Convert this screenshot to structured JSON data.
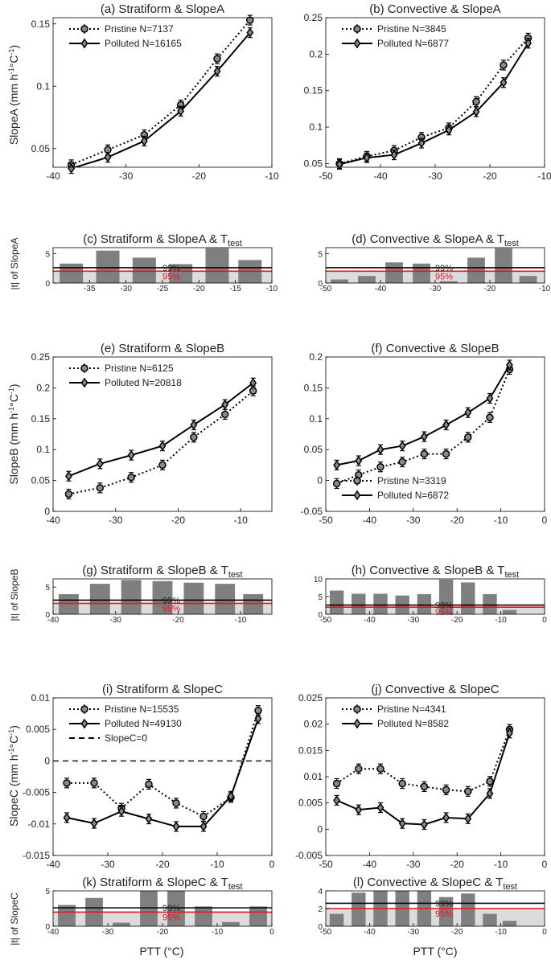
{
  "figure": {
    "ylabels": {
      "slopeA": "SlopeA (mm h",
      "slopeB": "SlopeB (mm h",
      "slopeC": "SlopeC (mm h",
      "unit_sup1": "-1",
      "unit_mid": "°C",
      "unit_sup2": "-1",
      "unit_close": ")",
      "ttest_A": "|t| of SlopeA",
      "ttest_B": "|t| of SlopeB",
      "ttest_C": "|t| of SlopeC"
    },
    "xlabel": "PTT (°C)",
    "ttest_title_suffix": "test",
    "ttest_title_sub": "T",
    "level_labels": {
      "l99": "99%",
      "l95": "95%"
    }
  },
  "chart_data": [
    {
      "id": "a",
      "type": "line",
      "title": "(a) Stratiform & SlopeA",
      "xlim": [
        -40,
        -10
      ],
      "ylim": [
        0.035,
        0.155
      ],
      "xticks": [
        -40,
        -30,
        -20,
        -10
      ],
      "yticks": [
        0.05,
        0.1,
        0.15
      ],
      "ytick_labels": [
        "0.05",
        "0.1",
        "0.15"
      ],
      "legend_position": "top-left",
      "series": [
        {
          "name": "Pristine",
          "label": "Pristine N=7137",
          "style": "dotted",
          "marker": "circle",
          "x": [
            -37.5,
            -32.5,
            -27.5,
            -22.5,
            -17.5,
            -13
          ],
          "y": [
            0.037,
            0.049,
            0.061,
            0.085,
            0.122,
            0.153
          ]
        },
        {
          "name": "Polluted",
          "label": "Polluted N=16165",
          "style": "solid",
          "marker": "diamond",
          "x": [
            -37.5,
            -32.5,
            -27.5,
            -22.5,
            -17.5,
            -13
          ],
          "y": [
            0.034,
            0.043,
            0.056,
            0.08,
            0.112,
            0.143
          ]
        }
      ]
    },
    {
      "id": "b",
      "type": "line",
      "title": "(b) Convective & SlopeA",
      "xlim": [
        -50,
        -10
      ],
      "ylim": [
        0.045,
        0.25
      ],
      "xticks": [
        -50,
        -40,
        -30,
        -20,
        -10
      ],
      "yticks": [
        0.05,
        0.1,
        0.15,
        0.2,
        0.25
      ],
      "ytick_labels": [
        "0.05",
        "0.1",
        "0.15",
        "0.2",
        "0.25"
      ],
      "legend_position": "top-left",
      "series": [
        {
          "name": "Pristine",
          "label": "Pristine  N=3845",
          "style": "dotted",
          "marker": "circle",
          "x": [
            -47.5,
            -42.5,
            -37.5,
            -32.5,
            -27.5,
            -22.5,
            -17.5,
            -13
          ],
          "y": [
            0.05,
            0.06,
            0.068,
            0.086,
            0.099,
            0.135,
            0.185,
            0.222
          ]
        },
        {
          "name": "Polluted",
          "label": "Polluted N=6877",
          "style": "solid",
          "marker": "diamond",
          "x": [
            -47.5,
            -42.5,
            -37.5,
            -32.5,
            -27.5,
            -22.5,
            -17.5,
            -13
          ],
          "y": [
            0.049,
            0.058,
            0.062,
            0.078,
            0.096,
            0.121,
            0.161,
            0.215
          ]
        }
      ]
    },
    {
      "id": "c",
      "type": "bar",
      "title": "(c) Stratiform & SlopeA & T",
      "xlim": [
        -40,
        -10
      ],
      "ylim": [
        0,
        6
      ],
      "xticks": [
        -35,
        -30,
        -25,
        -20,
        -15,
        -10
      ],
      "yticks": [
        0,
        5
      ],
      "x": [
        -37.5,
        -32.5,
        -27.5,
        -22.5,
        -17.5,
        -13
      ],
      "values": [
        3.3,
        5.5,
        4.3,
        3.2,
        5.9,
        3.9
      ],
      "bar_width": 3.2,
      "level_99": 2.6,
      "level_95": 2.0
    },
    {
      "id": "d",
      "type": "bar",
      "title": "(d) Convective & SlopeA & T",
      "xlim": [
        -50,
        -10
      ],
      "ylim": [
        0,
        6
      ],
      "xticks": [
        -50,
        -40,
        -30,
        -20,
        -10
      ],
      "yticks": [
        0,
        5
      ],
      "x": [
        -47.5,
        -42.5,
        -37.5,
        -32.5,
        -27.5,
        -22.5,
        -17.5,
        -13
      ],
      "values": [
        0.6,
        1.2,
        3.5,
        3.3,
        0.3,
        4.3,
        5.9,
        1.2
      ],
      "bar_width": 3.2,
      "level_99": 2.6,
      "level_95": 2.0
    },
    {
      "id": "e",
      "type": "line",
      "title": "(e) Stratiform & SlopeB",
      "xlim": [
        -40,
        -5
      ],
      "ylim": [
        0,
        0.25
      ],
      "xticks": [
        -40,
        -30,
        -20,
        -10
      ],
      "yticks": [
        0,
        0.05,
        0.1,
        0.15,
        0.2,
        0.25
      ],
      "ytick_labels": [
        "0",
        "0.05",
        "0.1",
        "0.15",
        "0.2",
        "0.25"
      ],
      "legend_position": "top-left",
      "series": [
        {
          "name": "Pristine",
          "label": "Pristine  N=6125",
          "style": "dotted",
          "marker": "circle",
          "x": [
            -37.5,
            -32.5,
            -27.5,
            -22.5,
            -17.5,
            -12.5,
            -8
          ],
          "y": [
            0.028,
            0.038,
            0.055,
            0.075,
            0.12,
            0.157,
            0.195
          ]
        },
        {
          "name": "Polluted",
          "label": "Polluted N=20818",
          "style": "solid",
          "marker": "diamond",
          "x": [
            -37.5,
            -32.5,
            -27.5,
            -22.5,
            -17.5,
            -12.5,
            -8
          ],
          "y": [
            0.057,
            0.077,
            0.091,
            0.106,
            0.14,
            0.173,
            0.208
          ]
        }
      ]
    },
    {
      "id": "f",
      "type": "line",
      "title": "(f) Convective & SlopeB",
      "xlim": [
        -50,
        0
      ],
      "ylim": [
        -0.05,
        0.2
      ],
      "xticks": [
        -50,
        -40,
        -30,
        -20,
        -10,
        0
      ],
      "yticks": [
        -0.05,
        0,
        0.05,
        0.1,
        0.15,
        0.2
      ],
      "ytick_labels": [
        "-0.05",
        "0",
        "0.05",
        "0.1",
        "0.15",
        "0.2"
      ],
      "legend_position": "bottom-left",
      "series": [
        {
          "name": "Pristine",
          "label": "Pristine  N=3319",
          "style": "dotted",
          "marker": "circle",
          "x": [
            -47.5,
            -42.5,
            -37.5,
            -32.5,
            -27.5,
            -22.5,
            -17.5,
            -12.5,
            -8
          ],
          "y": [
            -0.005,
            0.009,
            0.022,
            0.03,
            0.043,
            0.043,
            0.07,
            0.102,
            0.18
          ]
        },
        {
          "name": "Polluted",
          "label": "Polluted N=6872",
          "style": "solid",
          "marker": "diamond",
          "x": [
            -47.5,
            -42.5,
            -37.5,
            -32.5,
            -27.5,
            -22.5,
            -17.5,
            -12.5,
            -8
          ],
          "y": [
            0.025,
            0.032,
            0.05,
            0.056,
            0.071,
            0.09,
            0.11,
            0.133,
            0.187
          ]
        }
      ]
    },
    {
      "id": "g",
      "type": "bar",
      "title": "(g) Stratiform & SlopeB & T",
      "xlim": [
        -40,
        -5
      ],
      "ylim": [
        0,
        6.5
      ],
      "xticks": [
        -40,
        -30,
        -20,
        -10
      ],
      "yticks": [
        0,
        5
      ],
      "x": [
        -37.5,
        -32.5,
        -27.5,
        -22.5,
        -17.5,
        -12.5,
        -8
      ],
      "values": [
        3.7,
        5.6,
        6.3,
        6.1,
        5.8,
        5.6,
        3.7
      ],
      "bar_width": 3.2,
      "level_99": 2.6,
      "level_95": 2.0
    },
    {
      "id": "h",
      "type": "bar",
      "title": "(h) Convective & SlopeB & T",
      "xlim": [
        -50,
        0
      ],
      "ylim": [
        0,
        10
      ],
      "xticks": [
        -50,
        -40,
        -30,
        -20,
        -10,
        0
      ],
      "yticks": [
        0,
        5,
        10
      ],
      "x": [
        -47.5,
        -42.5,
        -37.5,
        -32.5,
        -27.5,
        -22.5,
        -17.5,
        -12.5,
        -8
      ],
      "values": [
        6.7,
        5.8,
        5.8,
        5.3,
        5.7,
        9.8,
        9.0,
        5.7,
        1.2
      ],
      "bar_width": 3.2,
      "level_99": 2.6,
      "level_95": 2.0
    },
    {
      "id": "i",
      "type": "line",
      "title": "(i) Stratiform & SlopeC",
      "xlim": [
        -40,
        0
      ],
      "ylim": [
        -0.015,
        0.01
      ],
      "xticks": [
        -40,
        -30,
        -20,
        -10,
        0
      ],
      "yticks": [
        -0.015,
        -0.01,
        -0.005,
        0,
        0.005,
        0.01
      ],
      "ytick_labels": [
        "-0.015",
        "-0.01",
        "-0.005",
        "0",
        "0.005",
        "0.01"
      ],
      "legend_position": "top-left",
      "zero_line": true,
      "series": [
        {
          "name": "Pristine",
          "label": "Pristine  N=15535",
          "style": "dotted",
          "marker": "circle",
          "x": [
            -37.5,
            -32.5,
            -27.5,
            -22.5,
            -17.5,
            -12.5,
            -7.5,
            -2.5
          ],
          "y": [
            -0.0035,
            -0.0035,
            -0.0075,
            -0.0037,
            -0.0067,
            -0.0088,
            -0.0058,
            0.008
          ]
        },
        {
          "name": "Polluted",
          "label": "Polluted N=49130",
          "style": "solid",
          "marker": "diamond",
          "x": [
            -37.5,
            -32.5,
            -27.5,
            -22.5,
            -17.5,
            -12.5,
            -7.5,
            -2.5
          ],
          "y": [
            -0.009,
            -0.0099,
            -0.008,
            -0.0092,
            -0.0104,
            -0.0104,
            -0.0056,
            0.0067
          ]
        },
        {
          "name": "SlopeC=0",
          "label": "SlopeC=0",
          "style": "dashed",
          "marker": "none",
          "x": [
            -40,
            0
          ],
          "y": [
            0,
            0
          ]
        }
      ]
    },
    {
      "id": "j",
      "type": "line",
      "title": "(j) Convective & SlopeC",
      "xlim": [
        -50,
        0
      ],
      "ylim": [
        -0.005,
        0.025
      ],
      "xticks": [
        -50,
        -40,
        -30,
        -20,
        -10,
        0
      ],
      "yticks": [
        -0.005,
        0,
        0.005,
        0.01,
        0.015,
        0.02,
        0.025
      ],
      "ytick_labels": [
        "-0.005",
        "0",
        "0.005",
        "0.01",
        "0.015",
        "0.02",
        "0.025"
      ],
      "legend_position": "top-left",
      "series": [
        {
          "name": "Pristine",
          "label": "Pristine  N=4341",
          "style": "dotted",
          "marker": "circle",
          "x": [
            -47.5,
            -42.5,
            -37.5,
            -32.5,
            -27.5,
            -22.5,
            -17.5,
            -12.5,
            -8
          ],
          "y": [
            0.0087,
            0.0115,
            0.0115,
            0.0087,
            0.0081,
            0.0075,
            0.0072,
            0.0091,
            0.019
          ]
        },
        {
          "name": "Polluted",
          "label": "Polluted N=8582",
          "style": "solid",
          "marker": "diamond",
          "x": [
            -47.5,
            -42.5,
            -37.5,
            -32.5,
            -27.5,
            -22.5,
            -17.5,
            -12.5,
            -8
          ],
          "y": [
            0.0055,
            0.0037,
            0.0041,
            0.0011,
            0.0009,
            0.0022,
            0.002,
            0.0068,
            0.0183
          ]
        }
      ]
    },
    {
      "id": "k",
      "type": "bar",
      "title": "(k) Stratiform & SlopeC & T",
      "xlim": [
        -40,
        0
      ],
      "ylim": [
        0,
        5
      ],
      "xticks": [
        -40,
        -30,
        -20,
        -10,
        0
      ],
      "yticks": [
        0,
        5
      ],
      "x": [
        -37.5,
        -32.5,
        -27.5,
        -22.5,
        -17.5,
        -12.5,
        -7.5,
        -2.5
      ],
      "values": [
        3.0,
        4.0,
        0.5,
        5.0,
        5.0,
        2.8,
        0.6,
        2.8
      ],
      "bar_width": 3.2,
      "level_99": 2.6,
      "level_95": 2.0
    },
    {
      "id": "l",
      "type": "bar",
      "title": "(l) Convective & SlopeC & T",
      "xlim": [
        -50,
        0
      ],
      "ylim": [
        0,
        4
      ],
      "xticks": [
        -50,
        -40,
        -30,
        -20,
        -10,
        0
      ],
      "yticks": [
        0,
        2,
        4
      ],
      "x": [
        -47.5,
        -42.5,
        -37.5,
        -32.5,
        -27.5,
        -22.5,
        -17.5,
        -12.5,
        -8
      ],
      "values": [
        1.4,
        3.8,
        4.0,
        4.0,
        4.0,
        3.3,
        3.7,
        1.4,
        0.6
      ],
      "bar_width": 3.2,
      "level_99": 2.6,
      "level_95": 2.0
    }
  ]
}
